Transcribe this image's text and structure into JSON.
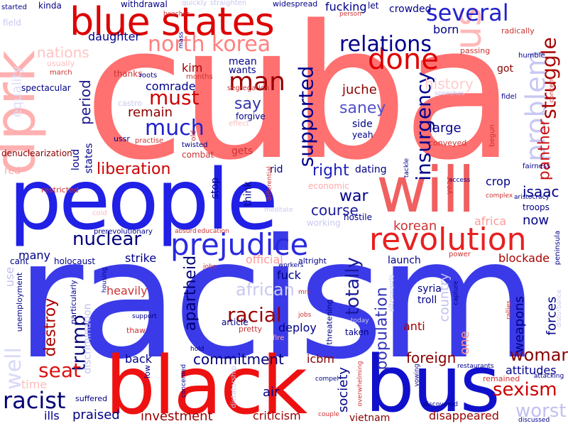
{
  "words": [
    {
      "text": "cuba",
      "color": "#ff7070"
    },
    {
      "text": "racism",
      "color": "#3a3ae8"
    },
    {
      "text": "people",
      "color": "#2020e6"
    },
    {
      "text": "black",
      "color": "#ee1111"
    },
    {
      "text": "will",
      "color": "#f06060"
    },
    {
      "text": "bus",
      "color": "#1010cc"
    },
    {
      "text": "blue states",
      "color": "#dd0000"
    },
    {
      "text": "dprk",
      "color": "#ffb0b0"
    },
    {
      "text": "revolution",
      "color": "#e82020"
    },
    {
      "text": "prejudice",
      "color": "#2a2ae0"
    },
    {
      "text": "us",
      "color": "#ffb8b8"
    },
    {
      "text": "done",
      "color": "#dd0000"
    },
    {
      "text": "several",
      "color": "#2222cc"
    },
    {
      "text": "north korea",
      "color": "#ff8080"
    },
    {
      "text": "relations",
      "color": "#00008b"
    },
    {
      "text": "problem",
      "color": "#c8c8f5"
    },
    {
      "text": "struggle",
      "color": "#aa0000"
    },
    {
      "text": "man",
      "color": "#990000"
    },
    {
      "text": "must",
      "color": "#cc0000"
    },
    {
      "text": "much",
      "color": "#2020cc"
    },
    {
      "text": "supported",
      "color": "#00008b"
    },
    {
      "text": "insurgency",
      "color": "#00008b"
    },
    {
      "text": "panther",
      "color": "#cc1111"
    },
    {
      "text": "liberation",
      "color": "#cc0000"
    },
    {
      "text": "nations",
      "color": "#ffc4c4"
    },
    {
      "text": "history",
      "color": "#ffcccc"
    },
    {
      "text": "say",
      "color": "#3333aa"
    },
    {
      "text": "saney",
      "color": "#5050c8"
    },
    {
      "text": "remain",
      "color": "#8b0000"
    },
    {
      "text": "comrade",
      "color": "#00008b"
    },
    {
      "text": "period",
      "color": "#1a1a8c"
    },
    {
      "text": "juche",
      "color": "#8b0000"
    },
    {
      "text": "mean",
      "color": "#000088"
    },
    {
      "text": "wants",
      "color": "#000088"
    },
    {
      "text": "kim",
      "color": "#aa0000"
    },
    {
      "text": "daughter",
      "color": "#000088"
    },
    {
      "text": "large",
      "color": "#000088"
    },
    {
      "text": "equality",
      "color": "#dcdcf8"
    },
    {
      "text": "right",
      "color": "#2020bb"
    },
    {
      "text": "war",
      "color": "#000088"
    },
    {
      "text": "course",
      "color": "#1a1a99"
    },
    {
      "text": "nuclear",
      "color": "#000077"
    },
    {
      "text": "trump",
      "color": "#000077"
    },
    {
      "text": "racial",
      "color": "#990000"
    },
    {
      "text": "african",
      "color": "#c8c8f0"
    },
    {
      "text": "totally",
      "color": "#1a1a99"
    },
    {
      "text": "population",
      "color": "#3333bb"
    },
    {
      "text": "country",
      "color": "#c0c0f0"
    },
    {
      "text": "isaac",
      "color": "#000088"
    },
    {
      "text": "crop",
      "color": "#000088"
    },
    {
      "text": "korean",
      "color": "#cc3333"
    },
    {
      "text": "africa",
      "color": "#ff9999"
    },
    {
      "text": "now",
      "color": "#000088"
    },
    {
      "text": "blockade",
      "color": "#aa0000"
    },
    {
      "text": "seat",
      "color": "#dd1111"
    },
    {
      "text": "racist",
      "color": "#000077"
    },
    {
      "text": "well",
      "color": "#d8d8f8"
    },
    {
      "text": "destroy",
      "color": "#aa0000"
    },
    {
      "text": "apartheid",
      "color": "#000077"
    },
    {
      "text": "commitment",
      "color": "#000077"
    },
    {
      "text": "woman",
      "color": "#880000"
    },
    {
      "text": "sexism",
      "color": "#cc0000"
    },
    {
      "text": "worst",
      "color": "#c0c0f0"
    },
    {
      "text": "foreign",
      "color": "#880000"
    },
    {
      "text": "society",
      "color": "#000088"
    },
    {
      "text": "weapons",
      "color": "#000088"
    },
    {
      "text": "forces",
      "color": "#000088"
    },
    {
      "text": "attitudes",
      "color": "#000088"
    },
    {
      "text": "investment",
      "color": "#990000"
    },
    {
      "text": "criticism",
      "color": "#990000"
    },
    {
      "text": "disappeared",
      "color": "#990000"
    },
    {
      "text": "praised",
      "color": "#000088"
    },
    {
      "text": "ills",
      "color": "#000088"
    },
    {
      "text": "vietnam",
      "color": "#880000"
    },
    {
      "text": "air",
      "color": "#000088"
    },
    {
      "text": "icbm",
      "color": "#880000"
    },
    {
      "text": "back",
      "color": "#000088"
    },
    {
      "text": "deploy",
      "color": "#000088"
    },
    {
      "text": "fuck",
      "color": "#000088"
    },
    {
      "text": "anti",
      "color": "#aa0000"
    },
    {
      "text": "one",
      "color": "#ff9999"
    },
    {
      "text": "syria",
      "color": "#000088"
    },
    {
      "text": "troll",
      "color": "#000088"
    },
    {
      "text": "launch",
      "color": "#000088"
    },
    {
      "text": "official",
      "color": "#ff9999"
    },
    {
      "text": "strike",
      "color": "#000088"
    },
    {
      "text": "many",
      "color": "#000088"
    },
    {
      "text": "heavily",
      "color": "#cc3333"
    },
    {
      "text": "holocaust",
      "color": "#000088"
    },
    {
      "text": "cant",
      "color": "#000088"
    },
    {
      "text": "use",
      "color": "#c0c0f0"
    },
    {
      "text": "unemployment",
      "color": "#000088"
    },
    {
      "text": "particularly",
      "color": "#000088"
    },
    {
      "text": "discrimination",
      "color": "#c0c0f0"
    },
    {
      "text": "time",
      "color": "#ffbbbb"
    },
    {
      "text": "suffered",
      "color": "#000088"
    },
    {
      "text": "denuclearization",
      "color": "#880000"
    },
    {
      "text": "red",
      "color": "#ffaaaa"
    },
    {
      "text": "restricted",
      "color": "#cc3333"
    },
    {
      "text": "loud",
      "color": "#000088"
    },
    {
      "text": "states",
      "color": "#000088"
    },
    {
      "text": "gets",
      "color": "#cc3333"
    },
    {
      "text": "think",
      "color": "#000088"
    },
    {
      "text": "stop",
      "color": "#000088"
    },
    {
      "text": "rid",
      "color": "#000088"
    },
    {
      "text": "dating",
      "color": "#000088"
    },
    {
      "text": "economic",
      "color": "#ffaaaa"
    },
    {
      "text": "hostile",
      "color": "#000088"
    },
    {
      "text": "working",
      "color": "#c8c8f0"
    },
    {
      "text": "side",
      "color": "#000088"
    },
    {
      "text": "yeah",
      "color": "#000088"
    },
    {
      "text": "forgive",
      "color": "#000088"
    },
    {
      "text": "combat",
      "color": "#cc3333"
    },
    {
      "text": "twisted",
      "color": "#000088"
    },
    {
      "text": "ussr",
      "color": "#000088"
    },
    {
      "text": "segregation",
      "color": "#cc3333"
    },
    {
      "text": "spectacular",
      "color": "#000088"
    },
    {
      "text": "thanks",
      "color": "#cc3333"
    },
    {
      "text": "got",
      "color": "#880000"
    },
    {
      "text": "born",
      "color": "#000088"
    },
    {
      "text": "crowded",
      "color": "#000088"
    },
    {
      "text": "fucking",
      "color": "#000088"
    },
    {
      "text": "withdrawal",
      "color": "#000088"
    },
    {
      "text": "kinda",
      "color": "#000088"
    },
    {
      "text": "widespread",
      "color": "#000088"
    },
    {
      "text": "let",
      "color": "#000088"
    },
    {
      "text": "passing",
      "color": "#cc3333"
    },
    {
      "text": "radically",
      "color": "#cc3333"
    },
    {
      "text": "humble",
      "color": "#000088"
    },
    {
      "text": "roots",
      "color": "#000088"
    },
    {
      "text": "months",
      "color": "#cc3333"
    },
    {
      "text": "old",
      "color": "#cc3333"
    },
    {
      "text": "fidel",
      "color": "#000088"
    },
    {
      "text": "conveyed",
      "color": "#cc3333"
    },
    {
      "text": "begun",
      "color": "#cc3333"
    },
    {
      "text": "fairness",
      "color": "#000088"
    },
    {
      "text": "aristocracy",
      "color": "#000088"
    },
    {
      "text": "troops",
      "color": "#000088"
    },
    {
      "text": "peninsula",
      "color": "#000088"
    },
    {
      "text": "complex",
      "color": "#cc3333"
    },
    {
      "text": "access",
      "color": "#000088"
    },
    {
      "text": "tackle",
      "color": "#000088"
    },
    {
      "text": "year",
      "color": "#cc3333"
    },
    {
      "text": "meditate",
      "color": "#c8c8f0"
    },
    {
      "text": "prerevolutionary",
      "color": "#000088"
    },
    {
      "text": "absurd",
      "color": "#cc3333"
    },
    {
      "text": "education",
      "color": "#cc3333"
    },
    {
      "text": "differential",
      "color": "#cc3333"
    },
    {
      "text": "practise",
      "color": "#cc3333"
    },
    {
      "text": "effect",
      "color": "#ffbbbb"
    },
    {
      "text": "concern",
      "color": "#cc3333"
    },
    {
      "text": "march",
      "color": "#cc3333"
    },
    {
      "text": "usually",
      "color": "#ffbbbb"
    },
    {
      "text": "field",
      "color": "#c8c8f0"
    },
    {
      "text": "started",
      "color": "#000088"
    },
    {
      "text": "beaches",
      "color": "#cc3333"
    },
    {
      "text": "mass",
      "color": "#000088"
    },
    {
      "text": "quickly",
      "color": "#c8c8f0"
    },
    {
      "text": "straighten",
      "color": "#c8c8f0"
    },
    {
      "text": "person",
      "color": "#cc3333"
    },
    {
      "text": "speeches",
      "color": "#c8c8f0"
    },
    {
      "text": "cold",
      "color": "#ffbbbb"
    },
    {
      "text": "jobs",
      "color": "#cc3333"
    },
    {
      "text": "power",
      "color": "#cc3333"
    },
    {
      "text": "housing",
      "color": "#000088"
    },
    {
      "text": "workers",
      "color": "#000088"
    },
    {
      "text": "altright",
      "color": "#000088"
    },
    {
      "text": "afterwards",
      "color": "#c8c8f0"
    },
    {
      "text": "capture",
      "color": "#000088"
    },
    {
      "text": "rallies",
      "color": "#cc3333"
    },
    {
      "text": "today",
      "color": "#c8c8f0"
    },
    {
      "text": "taken",
      "color": "#000088"
    },
    {
      "text": "threatening",
      "color": "#000088"
    },
    {
      "text": "article",
      "color": "#000088"
    },
    {
      "text": "pretty",
      "color": "#cc3333"
    },
    {
      "text": "fire",
      "color": "#ffaaaa"
    },
    {
      "text": "thaw",
      "color": "#cc3333"
    },
    {
      "text": "support",
      "color": "#000088"
    },
    {
      "text": "hold",
      "color": "#000088"
    },
    {
      "text": "concerned",
      "color": "#000088"
    },
    {
      "text": "low",
      "color": "#000088"
    },
    {
      "text": "dictatorship",
      "color": "#c8c8f0"
    },
    {
      "text": "compel",
      "color": "#000088"
    },
    {
      "text": "overwhelming",
      "color": "#cc3333"
    },
    {
      "text": "couple",
      "color": "#cc3333"
    },
    {
      "text": "vowing",
      "color": "#000088"
    },
    {
      "text": "remained",
      "color": "#cc3333"
    },
    {
      "text": "restaurants",
      "color": "#000088"
    },
    {
      "text": "attacking",
      "color": "#000088"
    },
    {
      "text": "discovered",
      "color": "#000088"
    },
    {
      "text": "disturbance",
      "color": "#c8c8f0"
    },
    {
      "text": "discussed",
      "color": "#000088"
    },
    {
      "text": "mrs",
      "color": "#cc3333"
    },
    {
      "text": "castro",
      "color": "#c8c8f0"
    },
    {
      "text": "jobs",
      "color": "#cc3333"
    }
  ]
}
